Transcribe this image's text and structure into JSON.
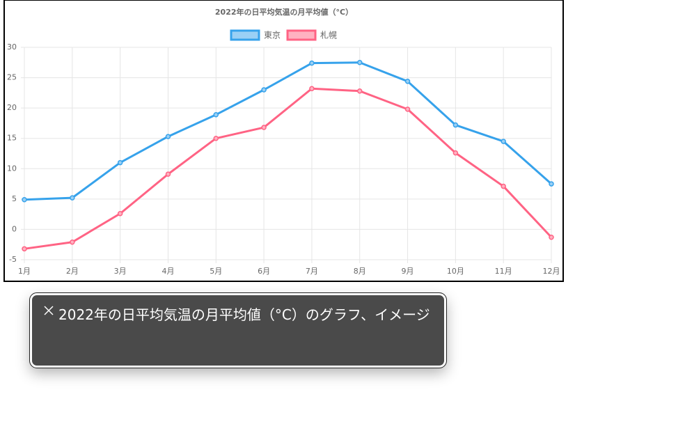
{
  "chart_data": {
    "type": "line",
    "title": "2022年の日平均気温の月平均値（°C）",
    "categories": [
      "1月",
      "2月",
      "3月",
      "4月",
      "5月",
      "6月",
      "7月",
      "8月",
      "9月",
      "10月",
      "11月",
      "12月"
    ],
    "series": [
      {
        "name": "東京",
        "color": "#36a2eb",
        "fill": "#9ad0f5",
        "values": [
          4.9,
          5.2,
          11.0,
          15.3,
          18.9,
          23.0,
          27.4,
          27.5,
          24.4,
          17.2,
          14.5,
          7.5
        ]
      },
      {
        "name": "札幌",
        "color": "#ff6384",
        "fill": "#ffb1c1",
        "values": [
          -3.2,
          -2.1,
          2.6,
          9.1,
          15.0,
          16.8,
          23.2,
          22.8,
          19.8,
          12.6,
          7.1,
          -1.3
        ]
      }
    ],
    "ylim": [
      -5,
      30
    ],
    "yticks": [
      -5,
      0,
      5,
      10,
      15,
      20,
      25,
      30
    ],
    "grid": true,
    "legend": "top"
  },
  "caption": {
    "text": "2022年の日平均気温の月平均値（°C）のグラフ、イメージ"
  }
}
